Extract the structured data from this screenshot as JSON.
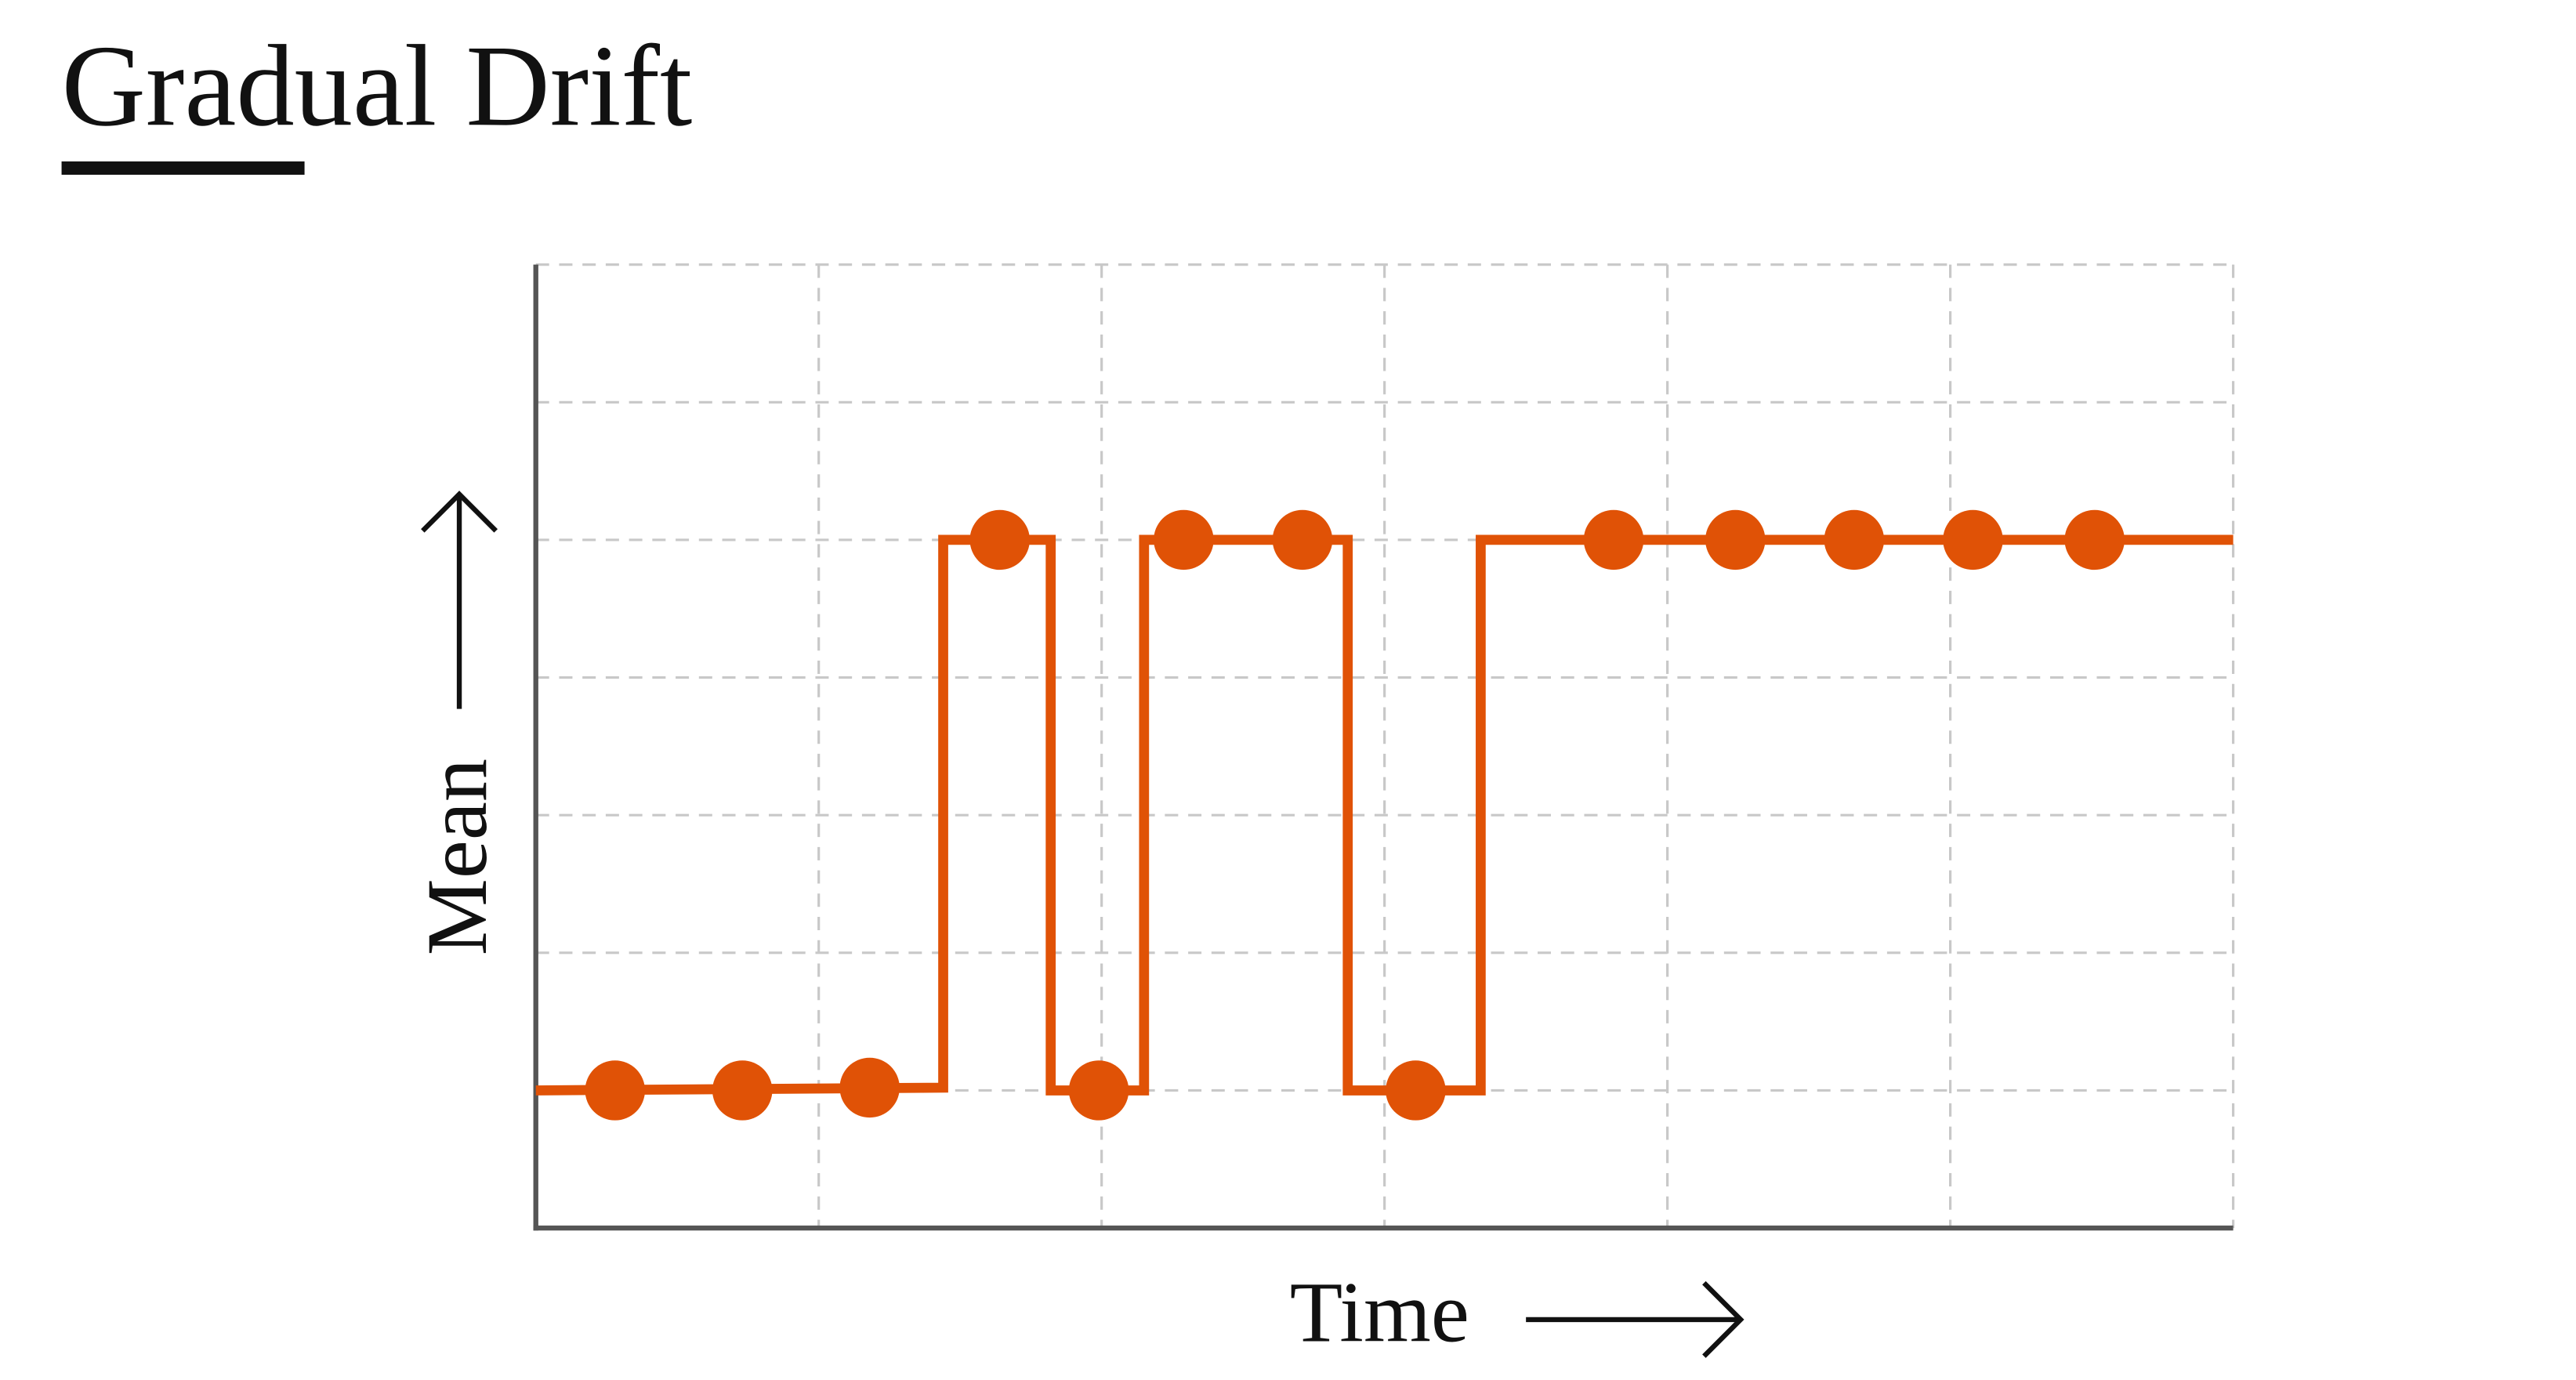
{
  "chart_data": {
    "type": "line",
    "title": "Gradual Drift",
    "xlabel": "Time",
    "ylabel": "Mean",
    "xlim": [
      0,
      6
    ],
    "ylim": [
      0,
      7
    ],
    "xticks": [
      1,
      2,
      3,
      4,
      5,
      6
    ],
    "yticks": [
      1,
      2,
      3,
      4,
      5,
      6,
      7
    ],
    "grid": true,
    "series": [
      {
        "color": "#e05206",
        "style": "step-line",
        "x": [
          0,
          1.44,
          1.44,
          1.82,
          1.82,
          2.15,
          2.15,
          2.87,
          2.87,
          3.34,
          3.34,
          6
        ],
        "values": [
          1,
          1.02,
          5,
          5,
          1,
          1,
          5,
          5,
          1,
          1,
          5,
          5
        ]
      },
      {
        "color": "#e05206",
        "style": "points",
        "x": [
          0.28,
          0.73,
          1.18,
          1.64,
          1.99,
          2.29,
          2.71,
          3.11,
          3.81,
          4.24,
          4.66,
          5.08,
          5.51
        ],
        "values": [
          1,
          1,
          1.02,
          5,
          1,
          5,
          5,
          1,
          5,
          5,
          5,
          5,
          5
        ]
      }
    ]
  }
}
